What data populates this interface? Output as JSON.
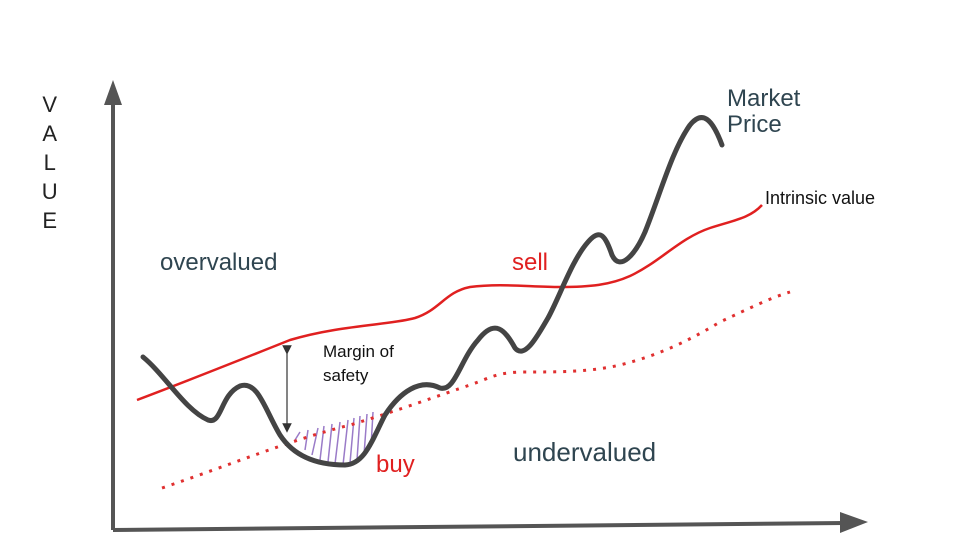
{
  "axis_label": "VALUE",
  "labels": {
    "market_price": "Market Price",
    "intrinsic_value": "Intrinsic value",
    "overvalued": "overvalued",
    "sell": "sell",
    "margin_of_safety": "Margin of safety",
    "buy": "buy",
    "undervalued": "undervalued"
  }
}
